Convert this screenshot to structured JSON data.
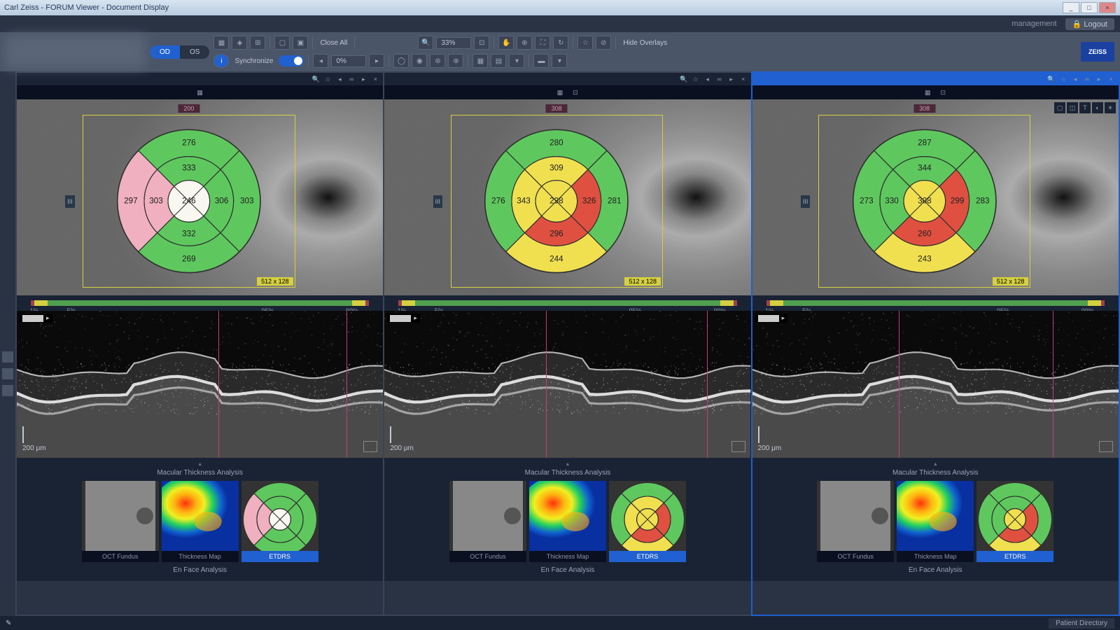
{
  "window": {
    "title": "Carl Zeiss - FORUM Viewer - Document Display",
    "minimize": "_",
    "maximize": "□",
    "close": "×"
  },
  "topbar": {
    "management": "management",
    "logout": "Logout"
  },
  "toolbar": {
    "toggle_od": "OD",
    "toggle_os": "OS",
    "close_all": "Close All",
    "zoom": "33%",
    "hide_overlays": "Hide Overlays",
    "synchronize": "Synchronize",
    "sync_value": "0%",
    "brand": "ZEISS"
  },
  "colors": {
    "green": "#5ec85e",
    "yellow": "#f0e050",
    "pink": "#f0b0c0",
    "red": "#e05040",
    "white": "#f8f8f0",
    "outline": "#303030"
  },
  "dist_ticks": [
    "1%",
    "5%",
    "95%",
    "99%"
  ],
  "panels": [
    {
      "active": false,
      "scan_top": "200",
      "scan_left": "III",
      "scan_br": "512 x 128",
      "etdrs": {
        "center": {
          "v": "246",
          "c": "white"
        },
        "inner": {
          "t": {
            "v": "333",
            "c": "green"
          },
          "r": {
            "v": "306",
            "c": "green"
          },
          "b": {
            "v": "332",
            "c": "green"
          },
          "l": {
            "v": "303",
            "c": "pink"
          }
        },
        "outer": {
          "t": {
            "v": "276",
            "c": "green"
          },
          "r": {
            "v": "303",
            "c": "green"
          },
          "b": {
            "v": "269",
            "c": "green"
          },
          "l": {
            "v": "297",
            "c": "pink"
          }
        }
      },
      "bscan": {
        "scale": "200 μm",
        "vline1": 55,
        "vline2": 90
      },
      "thumbs_title": "Macular Thickness Analysis",
      "thumbs": [
        {
          "label": "OCT Fundus",
          "type": "fundus",
          "active": false
        },
        {
          "label": "Thickness Map",
          "type": "heatmap",
          "active": false
        },
        {
          "label": "ETDRS",
          "type": "etdrs",
          "active": true
        }
      ],
      "footer": "En Face Analysis"
    },
    {
      "active": false,
      "scan_top": "308",
      "scan_left": "III",
      "scan_br": "512 x 128",
      "etdrs": {
        "center": {
          "v": "298",
          "c": "yellow"
        },
        "inner": {
          "t": {
            "v": "309",
            "c": "yellow"
          },
          "r": {
            "v": "326",
            "c": "red"
          },
          "b": {
            "v": "296",
            "c": "red"
          },
          "l": {
            "v": "343",
            "c": "yellow"
          }
        },
        "outer": {
          "t": {
            "v": "280",
            "c": "green"
          },
          "r": {
            "v": "281",
            "c": "green"
          },
          "b": {
            "v": "244",
            "c": "yellow"
          },
          "l": {
            "v": "276",
            "c": "green"
          }
        }
      },
      "bscan": {
        "scale": "200 μm",
        "vline1": 44,
        "vline2": 88
      },
      "thumbs_title": "Macular Thickness Analysis",
      "thumbs": [
        {
          "label": "OCT Fundus",
          "type": "fundus",
          "active": false
        },
        {
          "label": "Thickness Map",
          "type": "heatmap",
          "active": false
        },
        {
          "label": "ETDRS",
          "type": "etdrs",
          "active": true
        }
      ],
      "footer": "En Face Analysis"
    },
    {
      "active": true,
      "scan_top": "308",
      "scan_left": "III",
      "scan_br": "512 x 128",
      "etdrs": {
        "center": {
          "v": "308",
          "c": "yellow"
        },
        "inner": {
          "t": {
            "v": "344",
            "c": "green"
          },
          "r": {
            "v": "299",
            "c": "red"
          },
          "b": {
            "v": "260",
            "c": "red"
          },
          "l": {
            "v": "330",
            "c": "green"
          }
        },
        "outer": {
          "t": {
            "v": "287",
            "c": "green"
          },
          "r": {
            "v": "283",
            "c": "green"
          },
          "b": {
            "v": "243",
            "c": "yellow"
          },
          "l": {
            "v": "273",
            "c": "green"
          }
        }
      },
      "bscan": {
        "scale": "200 μm",
        "vline1": 40,
        "vline2": 82
      },
      "thumbs_title": "Macular Thickness Analysis",
      "thumbs": [
        {
          "label": "OCT Fundus",
          "type": "fundus",
          "active": false
        },
        {
          "label": "Thickness Map",
          "type": "heatmap",
          "active": false
        },
        {
          "label": "ETDRS",
          "type": "etdrs",
          "active": true
        }
      ],
      "footer": "En Face Analysis"
    }
  ],
  "statusbar": {
    "patient_directory": "Patient Directory"
  }
}
